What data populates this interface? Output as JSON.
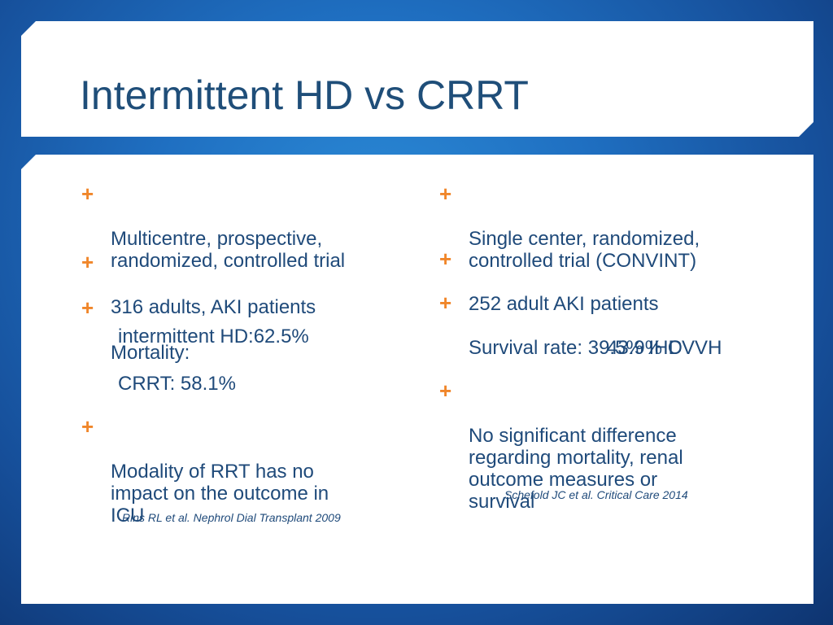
{
  "slide": {
    "title": "Intermittent HD vs CRRT"
  },
  "left_column": {
    "bullets": [
      {
        "marker": "+",
        "text": "Multicentre, prospective,\nrandomized, controlled trial"
      },
      {
        "marker": "+",
        "text": "316 adults, AKI patients"
      },
      {
        "marker": "+",
        "text": "Mortality:"
      },
      {
        "marker": "+",
        "text": "Modality of RRT has no\nimpact on the outcome in\nICU"
      }
    ],
    "mortality_lines": [
      "intermittent HD:62.5%",
      "CRRT: 58.1%"
    ],
    "citation": "Rins RL et al. Nephrol Dial Transplant 2009"
  },
  "right_column": {
    "bullets": [
      {
        "marker": "+",
        "text": "Single center, randomized,\ncontrolled trial (CONVINT)"
      },
      {
        "marker": "+",
        "text": " 252 adult AKI patients"
      },
      {
        "marker": "+",
        "text": "Survival rate: 39.5% IHD"
      },
      {
        "marker": "+",
        "text": "No significant difference\nregarding mortality, renal\noutcome measures or\nsurvival"
      }
    ],
    "survival_line": "43.9% CVVH",
    "citation": "Schefold JC et al. Critical Care 2014"
  },
  "colors": {
    "title": "#1f4e79",
    "body_text": "#1f4a7a",
    "bullet_accent": "#f0862a",
    "background": "#1f6fc1",
    "panel": "#ffffff"
  }
}
